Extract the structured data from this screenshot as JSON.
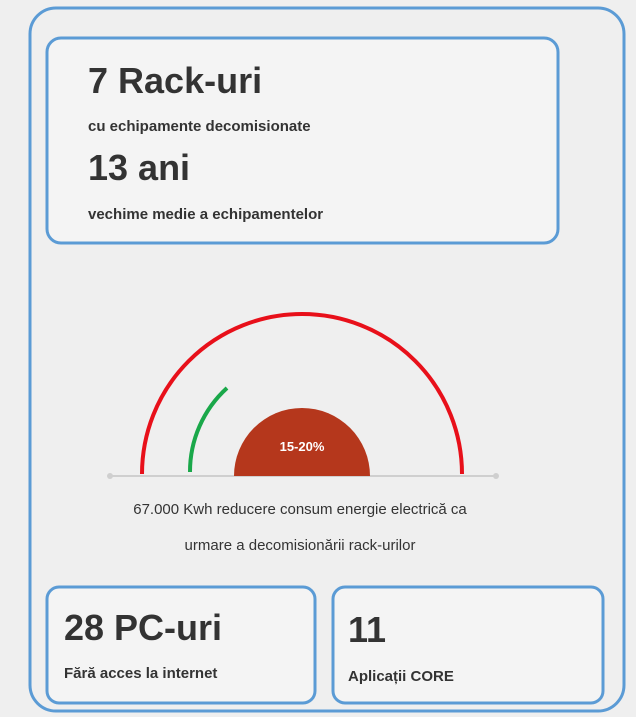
{
  "top_box": {
    "stat1": "7 Rack-uri",
    "label1": "cu echipamente decomisionate",
    "stat2": "13 ani",
    "label2": "vechime medie a echipamentelor"
  },
  "gauge": {
    "label": "15-20%"
  },
  "caption": {
    "lines": [
      "67.000 Kwh reducere consum energie electrică ca",
      "urmare a decomisionării rack-urilor"
    ]
  },
  "box_left": {
    "stat": "28 PC-uri",
    "label": "Fără acces la internet"
  },
  "box_right": {
    "stat": "11",
    "label": "Aplicații CORE"
  }
}
